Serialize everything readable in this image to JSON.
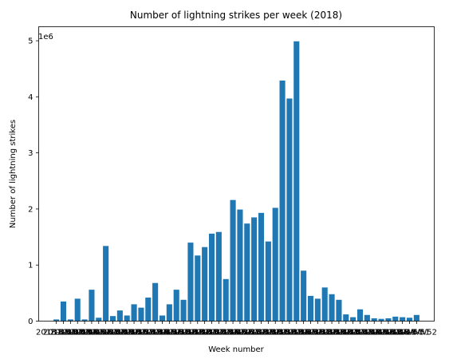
{
  "chart_data": {
    "type": "bar",
    "title": "Number of lightning strikes per week (2018)",
    "xlabel": "Week number",
    "ylabel": "Number of lightning strikes",
    "y_multiplier_label": "1e6",
    "ylim": [
      0,
      5250000
    ],
    "y_ticks": [
      0,
      1000000,
      2000000,
      3000000,
      4000000,
      5000000
    ],
    "y_tick_labels": [
      "0",
      "1",
      "2",
      "3",
      "4",
      "5"
    ],
    "bar_color": "#1f77b4",
    "grid": false,
    "categories": [
      "2018-W01",
      "2018-W02",
      "2018-W03",
      "2018-W04",
      "2018-W05",
      "2018-W06",
      "2018-W07",
      "2018-W08",
      "2018-W09",
      "2018-W10",
      "2018-W11",
      "2018-W12",
      "2018-W13",
      "2018-W14",
      "2018-W15",
      "2018-W16",
      "2018-W17",
      "2018-W18",
      "2018-W19",
      "2018-W20",
      "2018-W21",
      "2018-W22",
      "2018-W23",
      "2018-W24",
      "2018-W25",
      "2018-W26",
      "2018-W27",
      "2018-W28",
      "2018-W29",
      "2018-W30",
      "2018-W31",
      "2018-W32",
      "2018-W33",
      "2018-W34",
      "2018-W35",
      "2018-W36",
      "2018-W37",
      "2018-W38",
      "2018-W39",
      "2018-W40",
      "2018-W41",
      "2018-W42",
      "2018-W43",
      "2018-W44",
      "2018-W45",
      "2018-W46",
      "2018-W47",
      "2018-W48",
      "2018-W49",
      "2018-W50",
      "2018-W51",
      "2018-W52"
    ],
    "values": [
      30000,
      350000,
      30000,
      400000,
      30000,
      560000,
      60000,
      1340000,
      90000,
      190000,
      100000,
      300000,
      240000,
      420000,
      680000,
      100000,
      300000,
      560000,
      380000,
      1400000,
      1170000,
      1320000,
      1560000,
      1590000,
      750000,
      2160000,
      1990000,
      1740000,
      1850000,
      1930000,
      1420000,
      2020000,
      4290000,
      3970000,
      4990000,
      900000,
      450000,
      400000,
      600000,
      480000,
      380000,
      120000,
      70000,
      210000,
      110000,
      50000,
      40000,
      50000,
      80000,
      70000,
      60000,
      110000
    ]
  }
}
